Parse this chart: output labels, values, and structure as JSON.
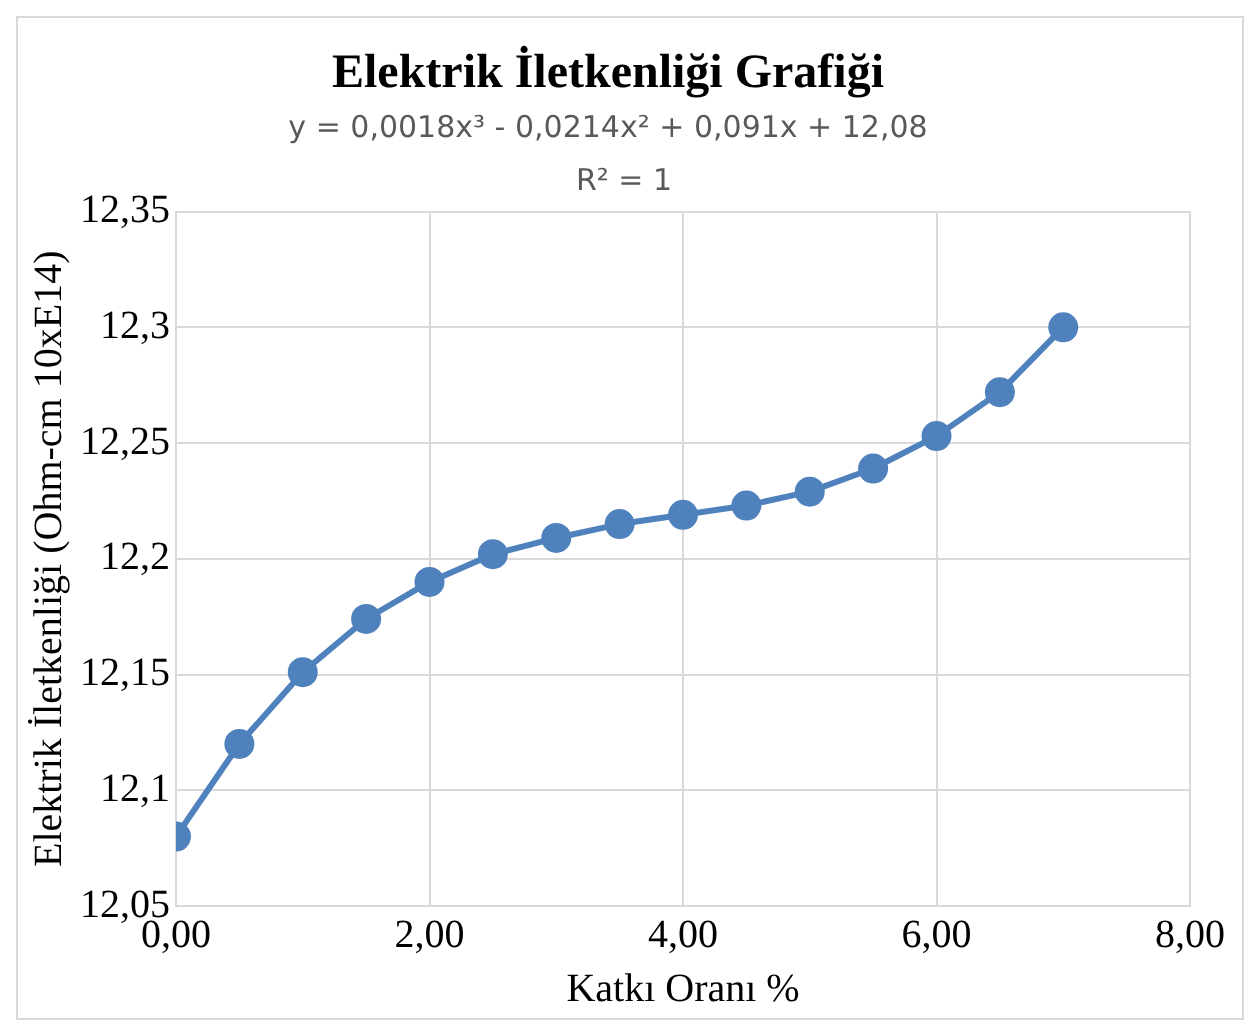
{
  "chart_data": {
    "type": "line",
    "title": "Elektrik İletkenliği Grafiği",
    "subtitle": "y = 0,0018x³ - 0,0214x² + 0,091x + 12,08",
    "annotations": [
      "R² = 1"
    ],
    "xlabel": "Katkı Oranı %",
    "ylabel": "Elektrik İletkenliği (Ohm-cm 10xE14)",
    "x": [
      0,
      0.5,
      1,
      1.5,
      2,
      2.5,
      3,
      3.5,
      4,
      4.5,
      5,
      5.5,
      6,
      6.5,
      7
    ],
    "series": [
      {
        "color": "#4f81bd",
        "values": [
          12.08,
          12.12,
          12.151,
          12.174,
          12.19,
          12.202,
          12.209,
          12.215,
          12.219,
          12.223,
          12.229,
          12.239,
          12.253,
          12.272,
          12.3
        ]
      }
    ],
    "xlim": [
      0,
      8
    ],
    "xticks": [
      {
        "value": 0,
        "label": "0,00"
      },
      {
        "value": 2,
        "label": "2,00"
      },
      {
        "value": 4,
        "label": "4,00"
      },
      {
        "value": 6,
        "label": "6,00"
      },
      {
        "value": 8,
        "label": "8,00"
      }
    ],
    "ylim": [
      12.05,
      12.35
    ],
    "yticks": [
      {
        "value": 12.05,
        "label": "12,05"
      },
      {
        "value": 12.1,
        "label": "12,1"
      },
      {
        "value": 12.15,
        "label": "12,15"
      },
      {
        "value": 12.2,
        "label": "12,2"
      },
      {
        "value": 12.25,
        "label": "12,25"
      },
      {
        "value": 12.3,
        "label": "12,3"
      },
      {
        "value": 12.35,
        "label": "12,35"
      }
    ],
    "grid": true,
    "legend": false,
    "marker": "circle",
    "line_style": "solid"
  }
}
